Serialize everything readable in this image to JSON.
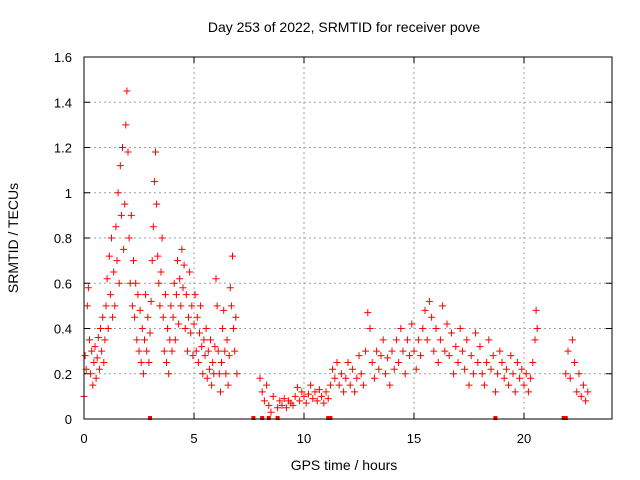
{
  "chart_data": {
    "type": "scatter",
    "title": "Day 253 of 2022, SRMTID for receiver pove",
    "xlabel": "GPS time / hours",
    "ylabel": "SRMTID / TECUs",
    "xlim": [
      0,
      24
    ],
    "ylim": [
      0,
      1.6
    ],
    "xticks": [
      0,
      5,
      10,
      15,
      20
    ],
    "xtick_labels": [
      "0",
      "5",
      "10",
      "15",
      "20"
    ],
    "yticks": [
      0,
      0.2,
      0.4,
      0.6,
      0.8,
      1,
      1.2,
      1.4,
      1.6
    ],
    "ytick_labels": [
      "0",
      "0.2",
      "0.4",
      "0.6",
      "0.8",
      "1",
      "1.2",
      "1.4",
      "1.6"
    ],
    "grid": true,
    "marker": "+",
    "color": "#ff0000",
    "series": [
      {
        "name": "SRMTID",
        "points": [
          [
            0.0,
            0.1
          ],
          [
            0.05,
            0.28
          ],
          [
            0.1,
            0.22
          ],
          [
            0.15,
            0.5
          ],
          [
            0.2,
            0.58
          ],
          [
            0.25,
            0.35
          ],
          [
            0.3,
            0.2
          ],
          [
            0.35,
            0.3
          ],
          [
            0.4,
            0.15
          ],
          [
            0.45,
            0.25
          ],
          [
            0.5,
            0.32
          ],
          [
            0.55,
            0.18
          ],
          [
            0.6,
            0.27
          ],
          [
            0.65,
            0.36
          ],
          [
            0.7,
            0.22
          ],
          [
            0.75,
            0.4
          ],
          [
            0.8,
            0.3
          ],
          [
            0.85,
            0.45
          ],
          [
            0.9,
            0.25
          ],
          [
            0.95,
            0.35
          ],
          [
            1.0,
            0.5
          ],
          [
            1.05,
            0.62
          ],
          [
            1.1,
            0.4
          ],
          [
            1.15,
            0.72
          ],
          [
            1.2,
            0.55
          ],
          [
            1.25,
            0.8
          ],
          [
            1.3,
            0.45
          ],
          [
            1.35,
            0.65
          ],
          [
            1.4,
            0.5
          ],
          [
            1.45,
            0.85
          ],
          [
            1.5,
            0.7
          ],
          [
            1.55,
            1.0
          ],
          [
            1.6,
            0.6
          ],
          [
            1.65,
            1.12
          ],
          [
            1.7,
            0.9
          ],
          [
            1.75,
            1.2
          ],
          [
            1.8,
            0.75
          ],
          [
            1.85,
            0.95
          ],
          [
            1.9,
            1.3
          ],
          [
            1.95,
            1.45
          ],
          [
            2.0,
            1.18
          ],
          [
            2.05,
            0.8
          ],
          [
            2.1,
            0.6
          ],
          [
            2.15,
            0.9
          ],
          [
            2.2,
            0.5
          ],
          [
            2.25,
            0.7
          ],
          [
            2.3,
            0.45
          ],
          [
            2.35,
            0.6
          ],
          [
            2.4,
            0.35
          ],
          [
            2.45,
            0.55
          ],
          [
            2.5,
            0.3
          ],
          [
            2.55,
            0.48
          ],
          [
            2.6,
            0.25
          ],
          [
            2.65,
            0.4
          ],
          [
            2.7,
            0.2
          ],
          [
            2.75,
            0.35
          ],
          [
            2.8,
            0.55
          ],
          [
            2.85,
            0.3
          ],
          [
            2.9,
            0.45
          ],
          [
            2.95,
            0.25
          ],
          [
            3.0,
            0.38
          ],
          [
            3.05,
            0.52
          ],
          [
            3.1,
            0.7
          ],
          [
            3.15,
            0.85
          ],
          [
            3.2,
            1.05
          ],
          [
            3.25,
            1.18
          ],
          [
            3.3,
            0.95
          ],
          [
            3.35,
            0.72
          ],
          [
            3.4,
            0.6
          ],
          [
            3.45,
            0.5
          ],
          [
            3.5,
            0.65
          ],
          [
            3.55,
            0.8
          ],
          [
            3.6,
            0.45
          ],
          [
            3.65,
            0.3
          ],
          [
            3.7,
            0.55
          ],
          [
            3.75,
            0.25
          ],
          [
            3.8,
            0.4
          ],
          [
            3.85,
            0.2
          ],
          [
            3.9,
            0.35
          ],
          [
            3.95,
            0.5
          ],
          [
            4.0,
            0.3
          ],
          [
            4.05,
            0.45
          ],
          [
            4.1,
            0.6
          ],
          [
            4.15,
            0.35
          ],
          [
            4.2,
            0.55
          ],
          [
            4.25,
            0.7
          ],
          [
            4.3,
            0.42
          ],
          [
            4.35,
            0.62
          ],
          [
            4.4,
            0.5
          ],
          [
            4.45,
            0.75
          ],
          [
            4.5,
            0.58
          ],
          [
            4.55,
            0.68
          ],
          [
            4.6,
            0.4
          ],
          [
            4.65,
            0.55
          ],
          [
            4.7,
            0.3
          ],
          [
            4.75,
            0.45
          ],
          [
            4.8,
            0.65
          ],
          [
            4.85,
            0.38
          ],
          [
            4.9,
            0.5
          ],
          [
            4.95,
            0.28
          ],
          [
            5.0,
            0.42
          ],
          [
            5.05,
            0.55
          ],
          [
            5.1,
            0.3
          ],
          [
            5.15,
            0.45
          ],
          [
            5.2,
            0.25
          ],
          [
            5.25,
            0.38
          ],
          [
            5.3,
            0.5
          ],
          [
            5.35,
            0.32
          ],
          [
            5.4,
            0.2
          ],
          [
            5.45,
            0.35
          ],
          [
            5.5,
            0.28
          ],
          [
            5.55,
            0.4
          ],
          [
            5.6,
            0.18
          ],
          [
            5.65,
            0.3
          ],
          [
            5.7,
            0.22
          ],
          [
            5.75,
            0.35
          ],
          [
            5.8,
            0.15
          ],
          [
            5.85,
            0.25
          ],
          [
            5.9,
            0.2
          ],
          [
            5.95,
            0.32
          ],
          [
            6.0,
            0.62
          ],
          [
            6.05,
            0.5
          ],
          [
            6.1,
            0.3
          ],
          [
            6.15,
            0.2
          ],
          [
            6.2,
            0.12
          ],
          [
            6.25,
            0.25
          ],
          [
            6.3,
            0.4
          ],
          [
            6.35,
            0.48
          ],
          [
            6.4,
            0.3
          ],
          [
            6.45,
            0.2
          ],
          [
            6.5,
            0.35
          ],
          [
            6.55,
            0.15
          ],
          [
            6.6,
            0.28
          ],
          [
            6.65,
            0.58
          ],
          [
            6.7,
            0.5
          ],
          [
            6.75,
            0.72
          ],
          [
            6.8,
            0.4
          ],
          [
            6.85,
            0.3
          ],
          [
            6.9,
            0.45
          ],
          [
            6.95,
            0.2
          ],
          [
            8.0,
            0.18
          ],
          [
            8.1,
            0.12
          ],
          [
            8.2,
            0.08
          ],
          [
            8.3,
            0.15
          ],
          [
            8.4,
            0.06
          ],
          [
            8.5,
            0.03
          ],
          [
            8.6,
            0.1
          ],
          [
            8.8,
            0.05
          ],
          [
            8.9,
            0.08
          ],
          [
            9.0,
            0.06
          ],
          [
            9.1,
            0.09
          ],
          [
            9.2,
            0.05
          ],
          [
            9.3,
            0.08
          ],
          [
            9.4,
            0.07
          ],
          [
            9.5,
            0.06
          ],
          [
            9.6,
            0.1
          ],
          [
            9.7,
            0.14
          ],
          [
            9.8,
            0.08
          ],
          [
            9.9,
            0.12
          ],
          [
            10.0,
            0.1
          ],
          [
            10.1,
            0.07
          ],
          [
            10.2,
            0.11
          ],
          [
            10.3,
            0.15
          ],
          [
            10.4,
            0.09
          ],
          [
            10.5,
            0.12
          ],
          [
            10.6,
            0.08
          ],
          [
            10.7,
            0.13
          ],
          [
            10.8,
            0.1
          ],
          [
            10.9,
            0.07
          ],
          [
            11.0,
            0.12
          ],
          [
            11.1,
            0.09
          ],
          [
            11.2,
            0.15
          ],
          [
            11.3,
            0.22
          ],
          [
            11.4,
            0.18
          ],
          [
            11.5,
            0.25
          ],
          [
            11.6,
            0.15
          ],
          [
            11.7,
            0.2
          ],
          [
            11.8,
            0.12
          ],
          [
            11.9,
            0.18
          ],
          [
            12.0,
            0.25
          ],
          [
            12.1,
            0.15
          ],
          [
            12.2,
            0.22
          ],
          [
            12.3,
            0.12
          ],
          [
            12.4,
            0.18
          ],
          [
            12.5,
            0.28
          ],
          [
            12.6,
            0.2
          ],
          [
            12.7,
            0.15
          ],
          [
            12.8,
            0.3
          ],
          [
            12.9,
            0.47
          ],
          [
            13.0,
            0.4
          ],
          [
            13.1,
            0.25
          ],
          [
            13.2,
            0.18
          ],
          [
            13.3,
            0.3
          ],
          [
            13.4,
            0.22
          ],
          [
            13.5,
            0.28
          ],
          [
            13.6,
            0.35
          ],
          [
            13.7,
            0.2
          ],
          [
            13.8,
            0.27
          ],
          [
            13.9,
            0.15
          ],
          [
            14.0,
            0.3
          ],
          [
            14.1,
            0.22
          ],
          [
            14.2,
            0.35
          ],
          [
            14.3,
            0.25
          ],
          [
            14.4,
            0.4
          ],
          [
            14.5,
            0.3
          ],
          [
            14.6,
            0.2
          ],
          [
            14.7,
            0.35
          ],
          [
            14.8,
            0.28
          ],
          [
            14.9,
            0.42
          ],
          [
            15.0,
            0.3
          ],
          [
            15.1,
            0.22
          ],
          [
            15.2,
            0.35
          ],
          [
            15.3,
            0.28
          ],
          [
            15.4,
            0.4
          ],
          [
            15.5,
            0.48
          ],
          [
            15.6,
            0.35
          ],
          [
            15.7,
            0.52
          ],
          [
            15.8,
            0.45
          ],
          [
            15.9,
            0.3
          ],
          [
            16.0,
            0.4
          ],
          [
            16.1,
            0.25
          ],
          [
            16.2,
            0.35
          ],
          [
            16.3,
            0.5
          ],
          [
            16.4,
            0.3
          ],
          [
            16.5,
            0.42
          ],
          [
            16.6,
            0.28
          ],
          [
            16.7,
            0.38
          ],
          [
            16.8,
            0.2
          ],
          [
            16.9,
            0.32
          ],
          [
            17.0,
            0.25
          ],
          [
            17.1,
            0.4
          ],
          [
            17.2,
            0.3
          ],
          [
            17.3,
            0.22
          ],
          [
            17.4,
            0.35
          ],
          [
            17.5,
            0.15
          ],
          [
            17.6,
            0.28
          ],
          [
            17.7,
            0.2
          ],
          [
            17.8,
            0.38
          ],
          [
            17.9,
            0.25
          ],
          [
            18.0,
            0.32
          ],
          [
            18.1,
            0.2
          ],
          [
            18.2,
            0.15
          ],
          [
            18.3,
            0.25
          ],
          [
            18.4,
            0.35
          ],
          [
            18.5,
            0.22
          ],
          [
            18.6,
            0.28
          ],
          [
            18.7,
            0.12
          ],
          [
            18.8,
            0.2
          ],
          [
            18.9,
            0.3
          ],
          [
            19.0,
            0.25
          ],
          [
            19.1,
            0.18
          ],
          [
            19.2,
            0.22
          ],
          [
            19.3,
            0.15
          ],
          [
            19.4,
            0.28
          ],
          [
            19.5,
            0.2
          ],
          [
            19.6,
            0.12
          ],
          [
            19.7,
            0.25
          ],
          [
            19.8,
            0.18
          ],
          [
            19.9,
            0.22
          ],
          [
            20.0,
            0.15
          ],
          [
            20.1,
            0.2
          ],
          [
            20.2,
            0.12
          ],
          [
            20.3,
            0.18
          ],
          [
            20.4,
            0.25
          ],
          [
            20.5,
            0.35
          ],
          [
            20.55,
            0.48
          ],
          [
            20.6,
            0.4
          ],
          [
            21.9,
            0.2
          ],
          [
            22.0,
            0.3
          ],
          [
            22.1,
            0.18
          ],
          [
            22.2,
            0.35
          ],
          [
            22.3,
            0.25
          ],
          [
            22.4,
            0.12
          ],
          [
            22.5,
            0.2
          ],
          [
            22.6,
            0.1
          ],
          [
            22.7,
            0.15
          ],
          [
            22.8,
            0.08
          ],
          [
            22.9,
            0.12
          ]
        ]
      }
    ],
    "baseline_markers_x": [
      3.0,
      7.7,
      8.1,
      8.4,
      8.8,
      11.1,
      11.2,
      18.7,
      21.8,
      21.9
    ]
  }
}
